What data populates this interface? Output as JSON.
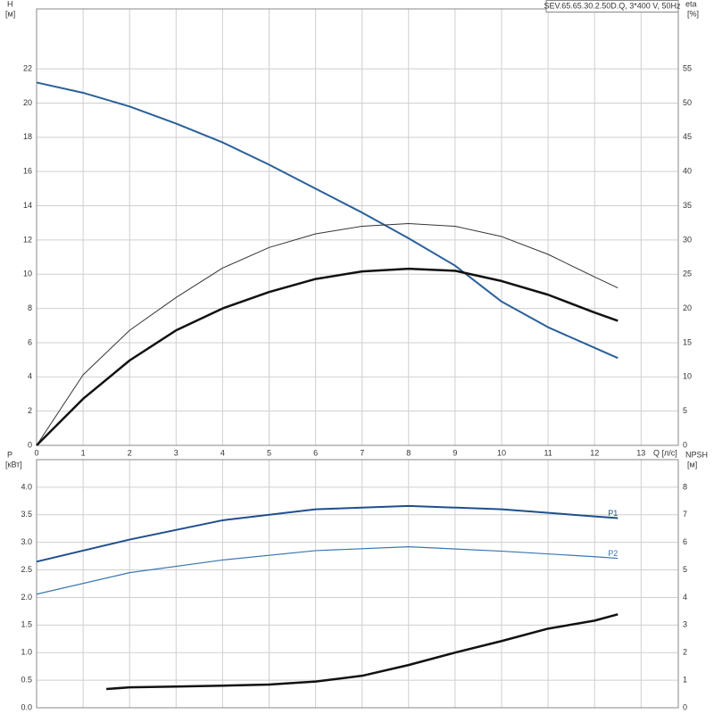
{
  "chart_data": [
    {
      "type": "line",
      "title": "SEV.65.65.30.2.50D.Q, 3*400 V, 50Hz",
      "xlabel": "Q [л/с]",
      "ylabel": "H",
      "yunit": "[м]",
      "y2label": "eta",
      "y2unit": "[%]",
      "xlim": [
        0,
        13.8
      ],
      "xticks": [
        0,
        1,
        2,
        3,
        4,
        5,
        6,
        7,
        8,
        9,
        10,
        11,
        12,
        13
      ],
      "ylim": [
        0,
        25.5
      ],
      "yticks": [
        0,
        2,
        4,
        6,
        8,
        10,
        12,
        14,
        16,
        18,
        20,
        22
      ],
      "y2lim": [
        0,
        63.75
      ],
      "y2ticks": [
        0,
        5,
        10,
        15,
        20,
        25,
        30,
        35,
        40,
        45,
        50,
        55
      ],
      "grid": true,
      "series": [
        {
          "color": "#2a6099",
          "width": 2,
          "x": [
            0,
            1,
            2,
            3,
            4,
            5,
            6,
            7,
            8,
            9,
            10,
            11,
            12,
            12.5
          ],
          "values": [
            21.2,
            20.6,
            19.8,
            18.8,
            17.7,
            16.4,
            15.0,
            13.6,
            12.1,
            10.5,
            8.4,
            6.9,
            5.7,
            5.1
          ]
        },
        {
          "color": "#333333",
          "width": 1,
          "axis": "y2",
          "x": [
            0,
            1,
            2,
            3,
            4,
            5,
            6,
            7,
            8,
            9,
            10,
            11,
            12,
            12.5
          ],
          "values": [
            0,
            10.3,
            16.8,
            21.6,
            25.9,
            28.9,
            30.9,
            32,
            32.4,
            32,
            30.5,
            27.9,
            24.6,
            23
          ]
        },
        {
          "color": "#111111",
          "width": 2.5,
          "axis": "y2",
          "x": [
            0,
            1,
            2,
            3,
            4,
            5,
            6,
            7,
            8,
            9,
            10,
            11,
            12,
            12.5
          ],
          "values": [
            0,
            6.8,
            12.4,
            16.8,
            20,
            22.4,
            24.3,
            25.4,
            25.8,
            25.5,
            24,
            22,
            19.4,
            18.2
          ]
        }
      ]
    },
    {
      "type": "line",
      "ylabel": "P",
      "yunit": "[кВт]",
      "y2label": "NPSH",
      "y2unit": "[м]",
      "xlim": [
        0,
        13.8
      ],
      "xticks": [
        0,
        1,
        2,
        3,
        4,
        5,
        6,
        7,
        8,
        9,
        10,
        11,
        12,
        13
      ],
      "ylim": [
        0,
        4.5
      ],
      "yticks": [
        {
          "value": 0,
          "label": "0.0"
        },
        {
          "value": 0.5,
          "label": "0.5"
        },
        {
          "value": 1,
          "label": "1.0"
        },
        {
          "value": 1.5,
          "label": "1.5"
        },
        {
          "value": 2,
          "label": "2.0"
        },
        {
          "value": 2.5,
          "label": "2.5"
        },
        {
          "value": 3,
          "label": "3.0"
        },
        {
          "value": 3.5,
          "label": "3.5"
        },
        {
          "value": 4,
          "label": "4.0"
        }
      ],
      "y2lim": [
        0,
        9
      ],
      "y2ticks": [
        0,
        1,
        2,
        3,
        4,
        5,
        6,
        7,
        8
      ],
      "grid": true,
      "series": [
        {
          "name": "P1",
          "color": "#1f4e8c",
          "width": 2,
          "x": [
            0,
            2,
            4,
            6,
            8,
            10,
            12,
            12.5
          ],
          "values": [
            2.65,
            3.05,
            3.4,
            3.6,
            3.66,
            3.6,
            3.47,
            3.44
          ]
        },
        {
          "name": "P2",
          "color": "#3a76b0",
          "width": 1.2,
          "x": [
            0,
            2,
            4,
            6,
            8,
            10,
            12,
            12.5
          ],
          "values": [
            2.06,
            2.45,
            2.68,
            2.85,
            2.92,
            2.84,
            2.74,
            2.71
          ]
        },
        {
          "color": "#111111",
          "width": 2.5,
          "axis": "y2",
          "x": [
            1.5,
            2,
            3,
            4,
            5,
            6,
            7,
            8,
            9,
            10,
            11,
            12,
            12.5
          ],
          "values": [
            0.68,
            0.74,
            0.77,
            0.8,
            0.84,
            0.95,
            1.16,
            1.55,
            2.0,
            2.42,
            2.87,
            3.16,
            3.39
          ]
        }
      ]
    }
  ]
}
